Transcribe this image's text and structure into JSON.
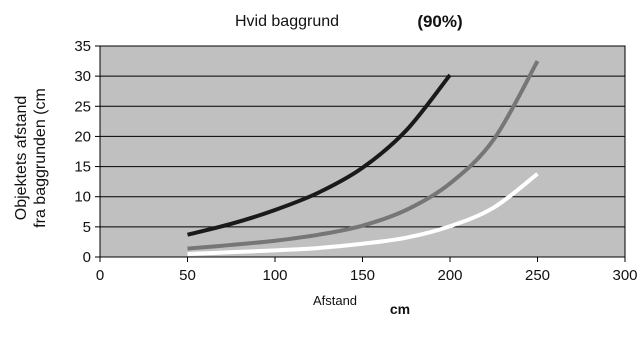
{
  "chart_data": {
    "type": "line",
    "title": "Hvid baggrund",
    "title_note": "(90%)",
    "xlabel": "Afstand",
    "xlabel_unit": "cm",
    "ylabel_lines": [
      "Objektets afstand",
      "fra baggrunden (cm"
    ],
    "xlim": [
      0,
      300
    ],
    "ylim": [
      0,
      35
    ],
    "x_ticks": [
      0,
      50,
      100,
      150,
      200,
      250,
      300
    ],
    "y_ticks": [
      0,
      5,
      10,
      15,
      20,
      25,
      30,
      35
    ],
    "grid": "horizontal",
    "legend": "none",
    "plot_background": "#c0c0c0",
    "series": [
      {
        "color": "#1a1a1a",
        "x": [
          50,
          75,
          100,
          125,
          150,
          175,
          200
        ],
        "y": [
          3.7,
          5.5,
          7.8,
          10.7,
          14.8,
          21.0,
          30.2
        ]
      },
      {
        "color": "#767676",
        "x": [
          50,
          75,
          100,
          125,
          150,
          175,
          200,
          225,
          250
        ],
        "y": [
          1.4,
          2.0,
          2.7,
          3.7,
          5.2,
          7.8,
          12.2,
          19.5,
          32.5
        ]
      },
      {
        "color": "#ffffff",
        "x": [
          50,
          75,
          100,
          125,
          150,
          175,
          200,
          225,
          250
        ],
        "y": [
          0.5,
          0.8,
          1.1,
          1.5,
          2.2,
          3.2,
          5.1,
          8.2,
          13.8
        ]
      }
    ]
  }
}
